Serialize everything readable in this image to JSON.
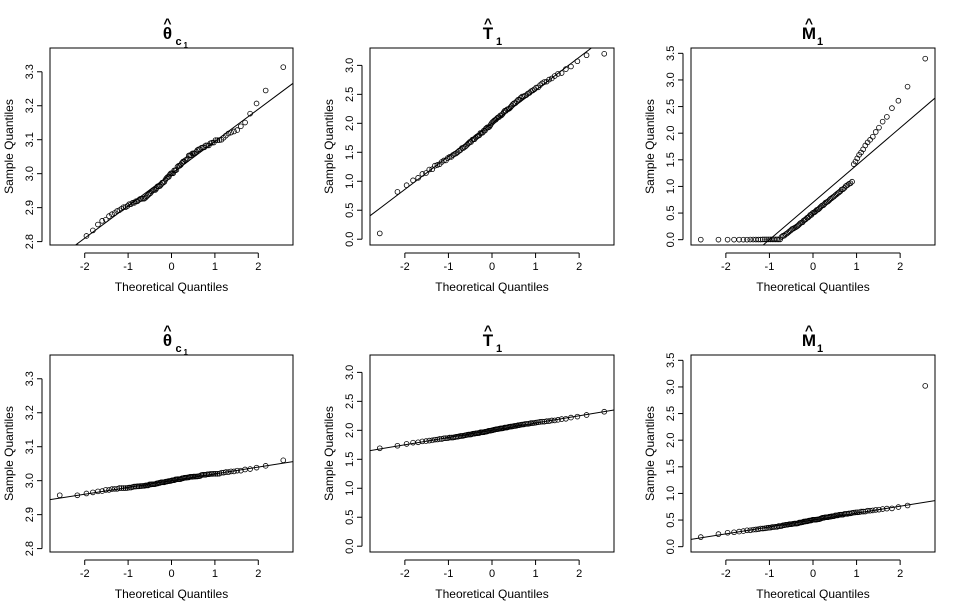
{
  "chart_data": [
    {
      "type": "scatter",
      "title": {
        "symbol": "θ",
        "hat": "^",
        "sub": "c",
        "subsub": "1"
      },
      "xlabel": "Theoretical Quantiles",
      "ylabel": "Sample Quantiles",
      "xlim": [
        -2.8,
        2.8
      ],
      "ylim": [
        2.79,
        3.37
      ],
      "xticks": [
        -2,
        -1,
        0,
        1,
        2
      ],
      "xtick_labels": [
        "-2",
        "-1",
        "0",
        "1",
        "2"
      ],
      "yticks": [
        2.8,
        2.9,
        3.0,
        3.1,
        3.2,
        3.3
      ],
      "ytick_labels": [
        "2.8",
        "2.9",
        "3.0",
        "3.1",
        "3.2",
        "3.3"
      ],
      "reference_line": {
        "intercept": 3.0,
        "slope": 0.095
      },
      "quantile_range": [
        2.81,
        3.35
      ],
      "n_points": 100
    },
    {
      "type": "scatter",
      "title": {
        "symbol": "T",
        "hat": "^",
        "sub": "1",
        "subsub": ""
      },
      "xlabel": "Theoretical Quantiles",
      "ylabel": "Sample Quantiles",
      "xlim": [
        -2.8,
        2.8
      ],
      "ylim": [
        -0.1,
        3.3
      ],
      "xticks": [
        -2,
        -1,
        0,
        1,
        2
      ],
      "xtick_labels": [
        "-2",
        "-1",
        "0",
        "1",
        "2"
      ],
      "yticks": [
        0,
        0.5,
        1,
        1.5,
        2,
        2.5,
        3
      ],
      "ytick_labels": [
        "0.0",
        "0.5",
        "1.0",
        "1.5",
        "2.0",
        "2.5",
        "3.0"
      ],
      "reference_line": {
        "intercept": 2.0,
        "slope": 0.57
      },
      "quantile_range": [
        0.1,
        3.2
      ],
      "n_points": 100
    },
    {
      "type": "scatter",
      "title": {
        "symbol": "M",
        "hat": "^",
        "sub": "1",
        "subsub": ""
      },
      "xlabel": "Theoretical Quantiles",
      "ylabel": "Sample Quantiles",
      "xlim": [
        -2.8,
        2.8
      ],
      "ylim": [
        -0.1,
        3.6
      ],
      "xticks": [
        -2,
        -1,
        0,
        1,
        2
      ],
      "xtick_labels": [
        "-2",
        "-1",
        "0",
        "1",
        "2"
      ],
      "yticks": [
        0,
        0.5,
        1,
        1.5,
        2,
        2.5,
        3,
        3.5
      ],
      "ytick_labels": [
        "0.0",
        "0.5",
        "1.0",
        "1.5",
        "2.0",
        "2.5",
        "3.0",
        "3.5"
      ],
      "reference_line": {
        "intercept": 0.7,
        "slope": 0.7
      },
      "quantile_range": [
        0.0,
        3.4
      ],
      "n_points": 100
    },
    {
      "type": "scatter",
      "title": {
        "symbol": "θ",
        "hat": "^",
        "sub": "c",
        "subsub": "1"
      },
      "xlabel": "Theoretical Quantiles",
      "ylabel": "Sample Quantiles",
      "xlim": [
        -2.8,
        2.8
      ],
      "ylim": [
        2.79,
        3.37
      ],
      "xticks": [
        -2,
        -1,
        0,
        1,
        2
      ],
      "xtick_labels": [
        "-2",
        "-1",
        "0",
        "1",
        "2"
      ],
      "yticks": [
        2.8,
        2.9,
        3.0,
        3.1,
        3.2,
        3.3
      ],
      "ytick_labels": [
        "2.8",
        "2.9",
        "3.0",
        "3.1",
        "3.2",
        "3.3"
      ],
      "reference_line": {
        "intercept": 3.0,
        "slope": 0.02
      },
      "quantile_range": [
        2.955,
        3.06
      ],
      "n_points": 100
    },
    {
      "type": "scatter",
      "title": {
        "symbol": "T",
        "hat": "^",
        "sub": "1",
        "subsub": ""
      },
      "xlabel": "Theoretical Quantiles",
      "ylabel": "Sample Quantiles",
      "xlim": [
        -2.8,
        2.8
      ],
      "ylim": [
        -0.1,
        3.3
      ],
      "xticks": [
        -2,
        -1,
        0,
        1,
        2
      ],
      "xtick_labels": [
        "-2",
        "-1",
        "0",
        "1",
        "2"
      ],
      "yticks": [
        0,
        0.5,
        1,
        1.5,
        2,
        2.5,
        3
      ],
      "ytick_labels": [
        "0.0",
        "0.5",
        "1.0",
        "1.5",
        "2.0",
        "2.5",
        "3.0"
      ],
      "reference_line": {
        "intercept": 2.0,
        "slope": 0.125
      },
      "quantile_range": [
        1.68,
        2.32
      ],
      "n_points": 100
    },
    {
      "type": "scatter",
      "title": {
        "symbol": "M",
        "hat": "^",
        "sub": "1",
        "subsub": ""
      },
      "xlabel": "Theoretical Quantiles",
      "ylabel": "Sample Quantiles",
      "xlim": [
        -2.8,
        2.8
      ],
      "ylim": [
        -0.1,
        3.6
      ],
      "xticks": [
        -2,
        -1,
        0,
        1,
        2
      ],
      "xtick_labels": [
        "-2",
        "-1",
        "0",
        "1",
        "2"
      ],
      "yticks": [
        0,
        0.5,
        1,
        1.5,
        2,
        2.5,
        3,
        3.5
      ],
      "ytick_labels": [
        "0.0",
        "0.5",
        "1.0",
        "1.5",
        "2.0",
        "2.5",
        "3.0",
        "3.5"
      ],
      "reference_line": {
        "intercept": 0.5,
        "slope": 0.13
      },
      "quantile_range": [
        0.18,
        3.02
      ],
      "n_points": 100
    }
  ]
}
